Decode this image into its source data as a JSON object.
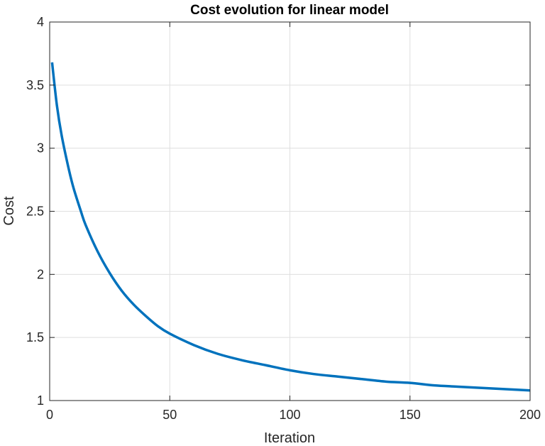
{
  "chart_data": {
    "type": "line",
    "title": "Cost evolution for linear model",
    "xlabel": "Iteration",
    "ylabel": "Cost",
    "xlim": [
      0,
      200
    ],
    "ylim": [
      1,
      4
    ],
    "xticks": [
      0,
      50,
      100,
      150,
      200
    ],
    "yticks": [
      1,
      1.5,
      2,
      2.5,
      3,
      3.5,
      4
    ],
    "grid": true,
    "series": [
      {
        "color": "#0072bd",
        "x": [
          1,
          3,
          5,
          8,
          10,
          13,
          15,
          20,
          25,
          30,
          35,
          40,
          45,
          50,
          60,
          70,
          80,
          90,
          100,
          110,
          120,
          130,
          140,
          150,
          160,
          170,
          180,
          190,
          200
        ],
        "y": [
          3.68,
          3.34,
          3.1,
          2.83,
          2.68,
          2.5,
          2.39,
          2.18,
          2.01,
          1.87,
          1.76,
          1.67,
          1.59,
          1.53,
          1.44,
          1.37,
          1.32,
          1.28,
          1.24,
          1.21,
          1.19,
          1.17,
          1.15,
          1.14,
          1.12,
          1.11,
          1.1,
          1.09,
          1.08
        ]
      }
    ]
  }
}
